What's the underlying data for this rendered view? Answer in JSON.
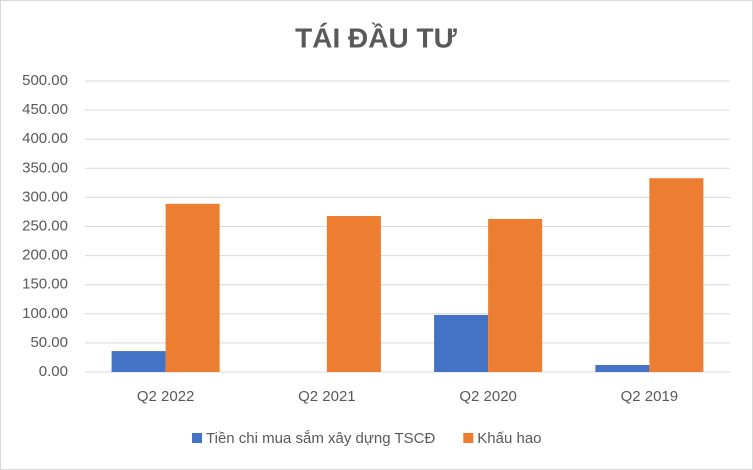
{
  "chart_data": {
    "type": "bar",
    "title": "TÁI ĐẦU TƯ",
    "categories": [
      "Q2 2022",
      "Q2 2021",
      "Q2 2020",
      "Q2 2019"
    ],
    "series": [
      {
        "name": "Tiền chi mua sắm xây dựng TSCĐ",
        "color": "#4472c4",
        "values": [
          36,
          0,
          98,
          12
        ]
      },
      {
        "name": "Khấu hao",
        "color": "#ed7d31",
        "values": [
          289,
          268,
          263,
          333
        ]
      }
    ],
    "ylim": [
      0,
      500
    ],
    "yticks": [
      {
        "value": 0,
        "label": "0.00"
      },
      {
        "value": 50,
        "label": "50.00"
      },
      {
        "value": 100,
        "label": "100.00"
      },
      {
        "value": 150,
        "label": "150.00"
      },
      {
        "value": 200,
        "label": "200.00"
      },
      {
        "value": 250,
        "label": "250.00"
      },
      {
        "value": 300,
        "label": "300.00"
      },
      {
        "value": 350,
        "label": "350.00"
      },
      {
        "value": 400,
        "label": "400.00"
      },
      {
        "value": 450,
        "label": "450.00"
      },
      {
        "value": 500,
        "label": "500.00"
      }
    ],
    "grid": true,
    "legend": "bottom"
  }
}
